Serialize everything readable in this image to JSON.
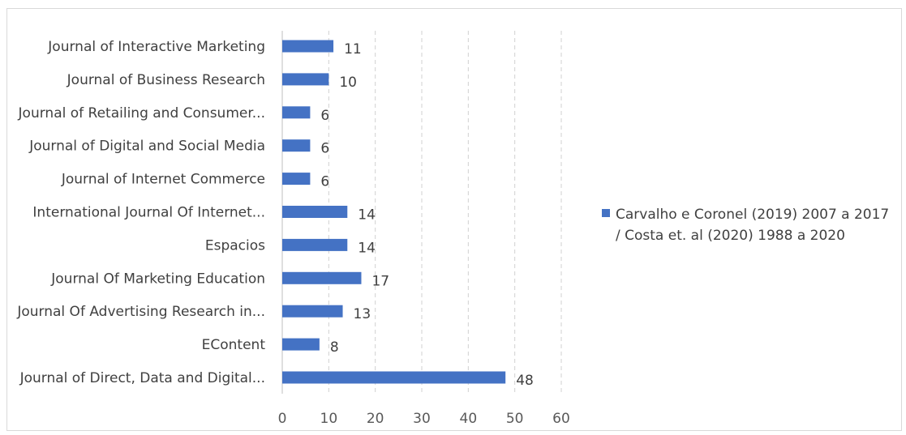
{
  "chart_data": {
    "type": "bar",
    "orientation": "horizontal",
    "title": "",
    "xlabel": "",
    "ylabel": "",
    "categories": [
      "Journal of Interactive Marketing",
      "Journal of Business Research",
      "Journal of Retailing and Consumer...",
      "Journal of Digital and Social Media",
      "Journal of Internet Commerce",
      "International Journal Of Internet...",
      "Espacios",
      "Journal Of Marketing Education",
      "Journal Of Advertising Research in...",
      "EContent",
      "Journal of Direct, Data and Digital..."
    ],
    "series": [
      {
        "name": "Carvalho e Coronel (2019) 2007 a 2017 / Costa et. al (2020) 1988 a 2020",
        "legend_lines": [
          "Carvalho e Coronel (2019) 2007 a 2017",
          "/ Costa et. al (2020) 1988 a 2020"
        ],
        "values": [
          11,
          10,
          6,
          6,
          6,
          14,
          14,
          17,
          13,
          8,
          48
        ],
        "color": "#4472c4"
      }
    ],
    "xlim": [
      0,
      60
    ],
    "xticks": [
      "0",
      "10",
      "20",
      "30",
      "40",
      "50",
      "60"
    ],
    "grid": "vertical dashed",
    "legend": "right",
    "data_labels": true
  }
}
